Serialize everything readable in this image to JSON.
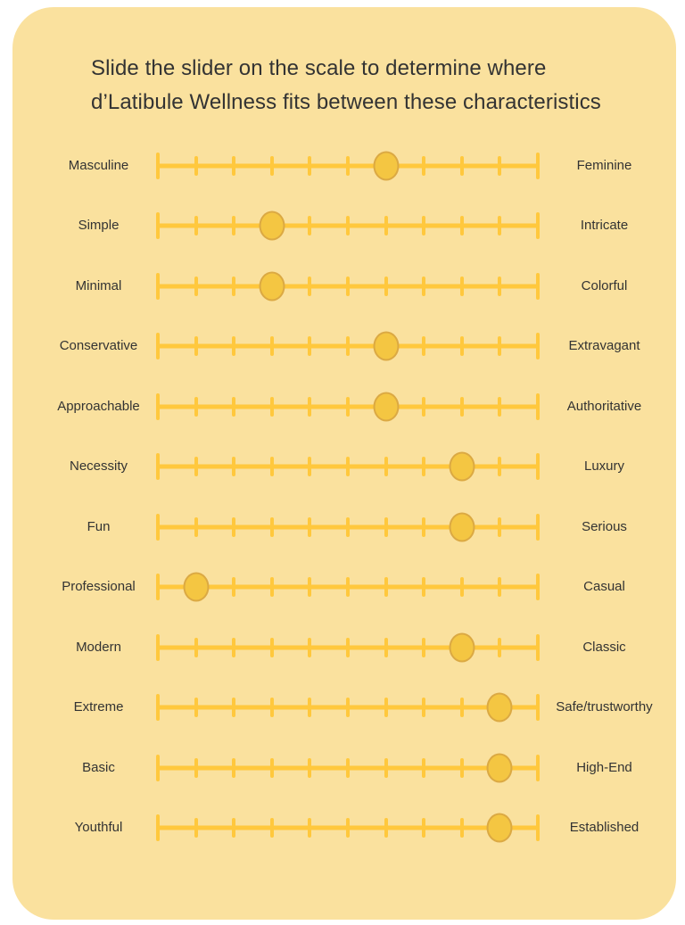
{
  "title": "Slide the slider on the scale to determine where d’Latibule Wellness fits between these characteristics",
  "colors": {
    "card_bg": "#FAE19E",
    "scale_yellow": "#FFC83D",
    "knob_fill": "#F4C642",
    "knob_border": "#DBA943",
    "text_color": "#333333"
  },
  "scale": {
    "min": 0,
    "max": 10,
    "tick_count": 11
  },
  "sliders": [
    {
      "left": "Masculine",
      "right": "Feminine",
      "value": 6
    },
    {
      "left": "Simple",
      "right": "Intricate",
      "value": 3
    },
    {
      "left": "Minimal",
      "right": "Colorful",
      "value": 3
    },
    {
      "left": "Conservative",
      "right": "Extravagant",
      "value": 6
    },
    {
      "left": "Approachable",
      "right": "Authoritative",
      "value": 6
    },
    {
      "left": "Necessity",
      "right": "Luxury",
      "value": 8
    },
    {
      "left": "Fun",
      "right": "Serious",
      "value": 8
    },
    {
      "left": "Professional",
      "right": "Casual",
      "value": 1
    },
    {
      "left": "Modern",
      "right": "Classic",
      "value": 8
    },
    {
      "left": "Extreme",
      "right": "Safe/trustworthy",
      "value": 9
    },
    {
      "left": "Basic",
      "right": "High-End",
      "value": 9
    },
    {
      "left": "Youthful",
      "right": "Established",
      "value": 9
    }
  ]
}
